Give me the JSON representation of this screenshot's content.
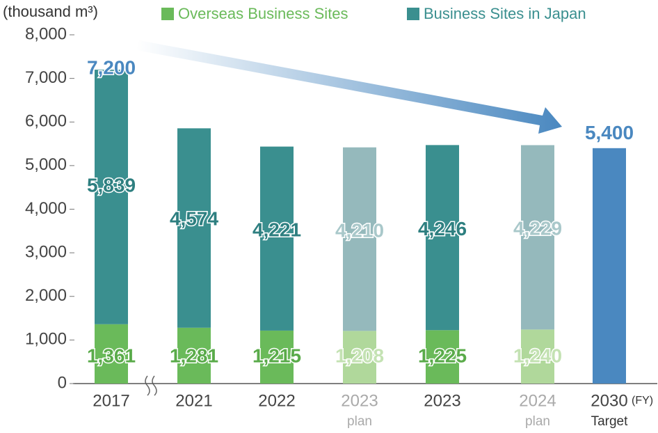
{
  "chart_data": {
    "type": "stacked-bar",
    "y_label": "(thousand m³)",
    "x_unit": "(FY)",
    "categories": [
      "2017",
      "2021",
      "2022",
      "2023",
      "2023",
      "2024",
      "2030"
    ],
    "x_sublabels": [
      null,
      null,
      null,
      "plan",
      null,
      "plan",
      "Target"
    ],
    "planned": [
      false,
      false,
      false,
      true,
      false,
      true,
      false
    ],
    "series": [
      {
        "name": "Overseas Business Sites",
        "color": "#6aba5a",
        "plan_color": "#b0d89b",
        "label_color": "#5aab4a",
        "plan_label_color": "#c4e2b3",
        "values": [
          1361,
          1281,
          1215,
          1208,
          1225,
          1240,
          null
        ],
        "value_labels": [
          "1,361",
          "1,281",
          "1,215",
          "1,208",
          "1,225",
          "1,240",
          null
        ]
      },
      {
        "name": "Business Sites in Japan",
        "color": "#3a8f8f",
        "plan_color": "#95b9bc",
        "label_color": "#2e7f80",
        "plan_label_color": "#a9c8ca",
        "values": [
          5839,
          4574,
          4221,
          4210,
          4246,
          4229,
          null
        ],
        "value_labels": [
          "5,839",
          "4,574",
          "4,221",
          "4,210",
          "4,246",
          "4,229",
          null
        ]
      }
    ],
    "target": {
      "color": "#4a88c0",
      "values": [
        null,
        null,
        null,
        null,
        null,
        null,
        5400
      ],
      "value_labels": [
        null,
        null,
        null,
        null,
        null,
        null,
        "5,400"
      ]
    },
    "totals": {
      "values": [
        7200,
        null,
        null,
        null,
        null,
        null,
        null
      ],
      "value_labels": [
        "7,200",
        null,
        null,
        null,
        null,
        null,
        null
      ]
    },
    "ylim": [
      0,
      8000
    ],
    "yticks": [
      0,
      {
        "value": 1000,
        "label": "1,000"
      },
      {
        "value": 2000,
        "label": "2,000"
      },
      {
        "value": 3000,
        "label": "3,000"
      },
      {
        "value": 4000,
        "label": "4,000"
      },
      {
        "value": 5000,
        "label": "5,000"
      },
      {
        "value": 6000,
        "label": "6,000"
      },
      {
        "value": 7000,
        "label": "7,000"
      },
      {
        "value": 8000,
        "label": "8,000"
      }
    ],
    "grid": false
  }
}
